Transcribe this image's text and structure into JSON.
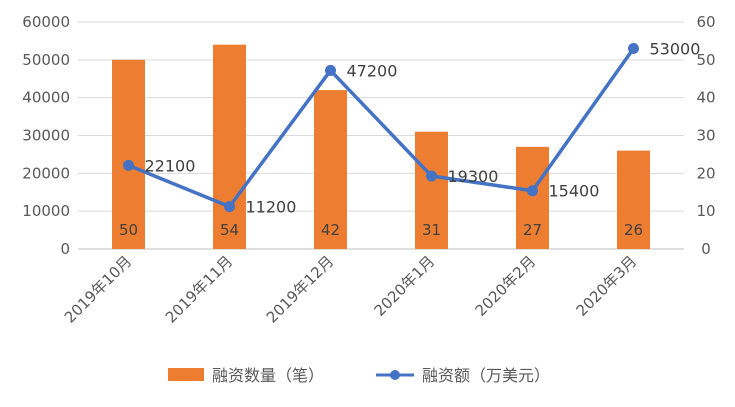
{
  "chart_data": {
    "type": "bar+line",
    "categories": [
      "2019年10月",
      "2019年11月",
      "2019年12月",
      "2020年1月",
      "2020年2月",
      "2020年3月"
    ],
    "series": [
      {
        "name": "融资数量（笔）",
        "type": "bar",
        "axis": "right",
        "values": [
          50,
          54,
          42,
          31,
          27,
          26
        ],
        "labels": [
          "50",
          "54",
          "42",
          "31",
          "27",
          "26"
        ],
        "color": "#ED7D31"
      },
      {
        "name": "融资额（万美元）",
        "type": "line",
        "axis": "left",
        "values": [
          22100,
          11200,
          47200,
          19300,
          15400,
          53000
        ],
        "labels": [
          "22100",
          "11200",
          "47200",
          "19300",
          "15400",
          "53000"
        ],
        "color": "#4472C4"
      }
    ],
    "y_left": {
      "range": [
        0,
        60000
      ],
      "ticks": [
        "0",
        "10000",
        "20000",
        "30000",
        "40000",
        "50000",
        "60000"
      ]
    },
    "y_right": {
      "range": [
        0,
        60
      ],
      "ticks": [
        "0",
        "10",
        "20",
        "30",
        "40",
        "50",
        "60"
      ]
    },
    "grid": true,
    "legend_position": "bottom"
  }
}
